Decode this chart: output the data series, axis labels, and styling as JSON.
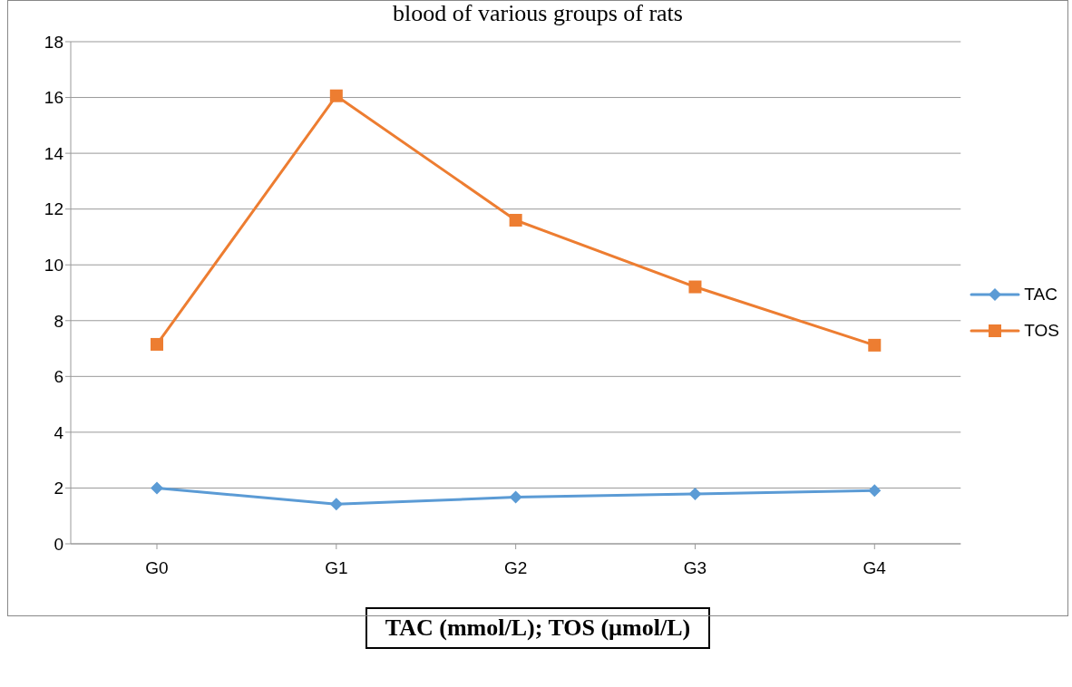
{
  "chart_data": {
    "type": "line",
    "title": "blood of various groups of rats",
    "categories": [
      "G0",
      "G1",
      "G2",
      "G3",
      "G4"
    ],
    "series": [
      {
        "name": "TAC",
        "color": "#5b9bd5",
        "marker": "diamond",
        "values": [
          2.0,
          1.42,
          1.67,
          1.79,
          1.91
        ]
      },
      {
        "name": "TOS",
        "color": "#ed7d31",
        "marker": "square",
        "values": [
          7.15,
          16.06,
          11.6,
          9.21,
          7.12
        ]
      }
    ],
    "ylim": [
      0,
      18
    ],
    "yticks": [
      0,
      2,
      4,
      6,
      8,
      10,
      12,
      14,
      16,
      18
    ],
    "grid": "y",
    "legend": "right",
    "line_style": "solid",
    "annotations": [
      "TAC (mmol/L); TOS (µmol/L)"
    ]
  }
}
